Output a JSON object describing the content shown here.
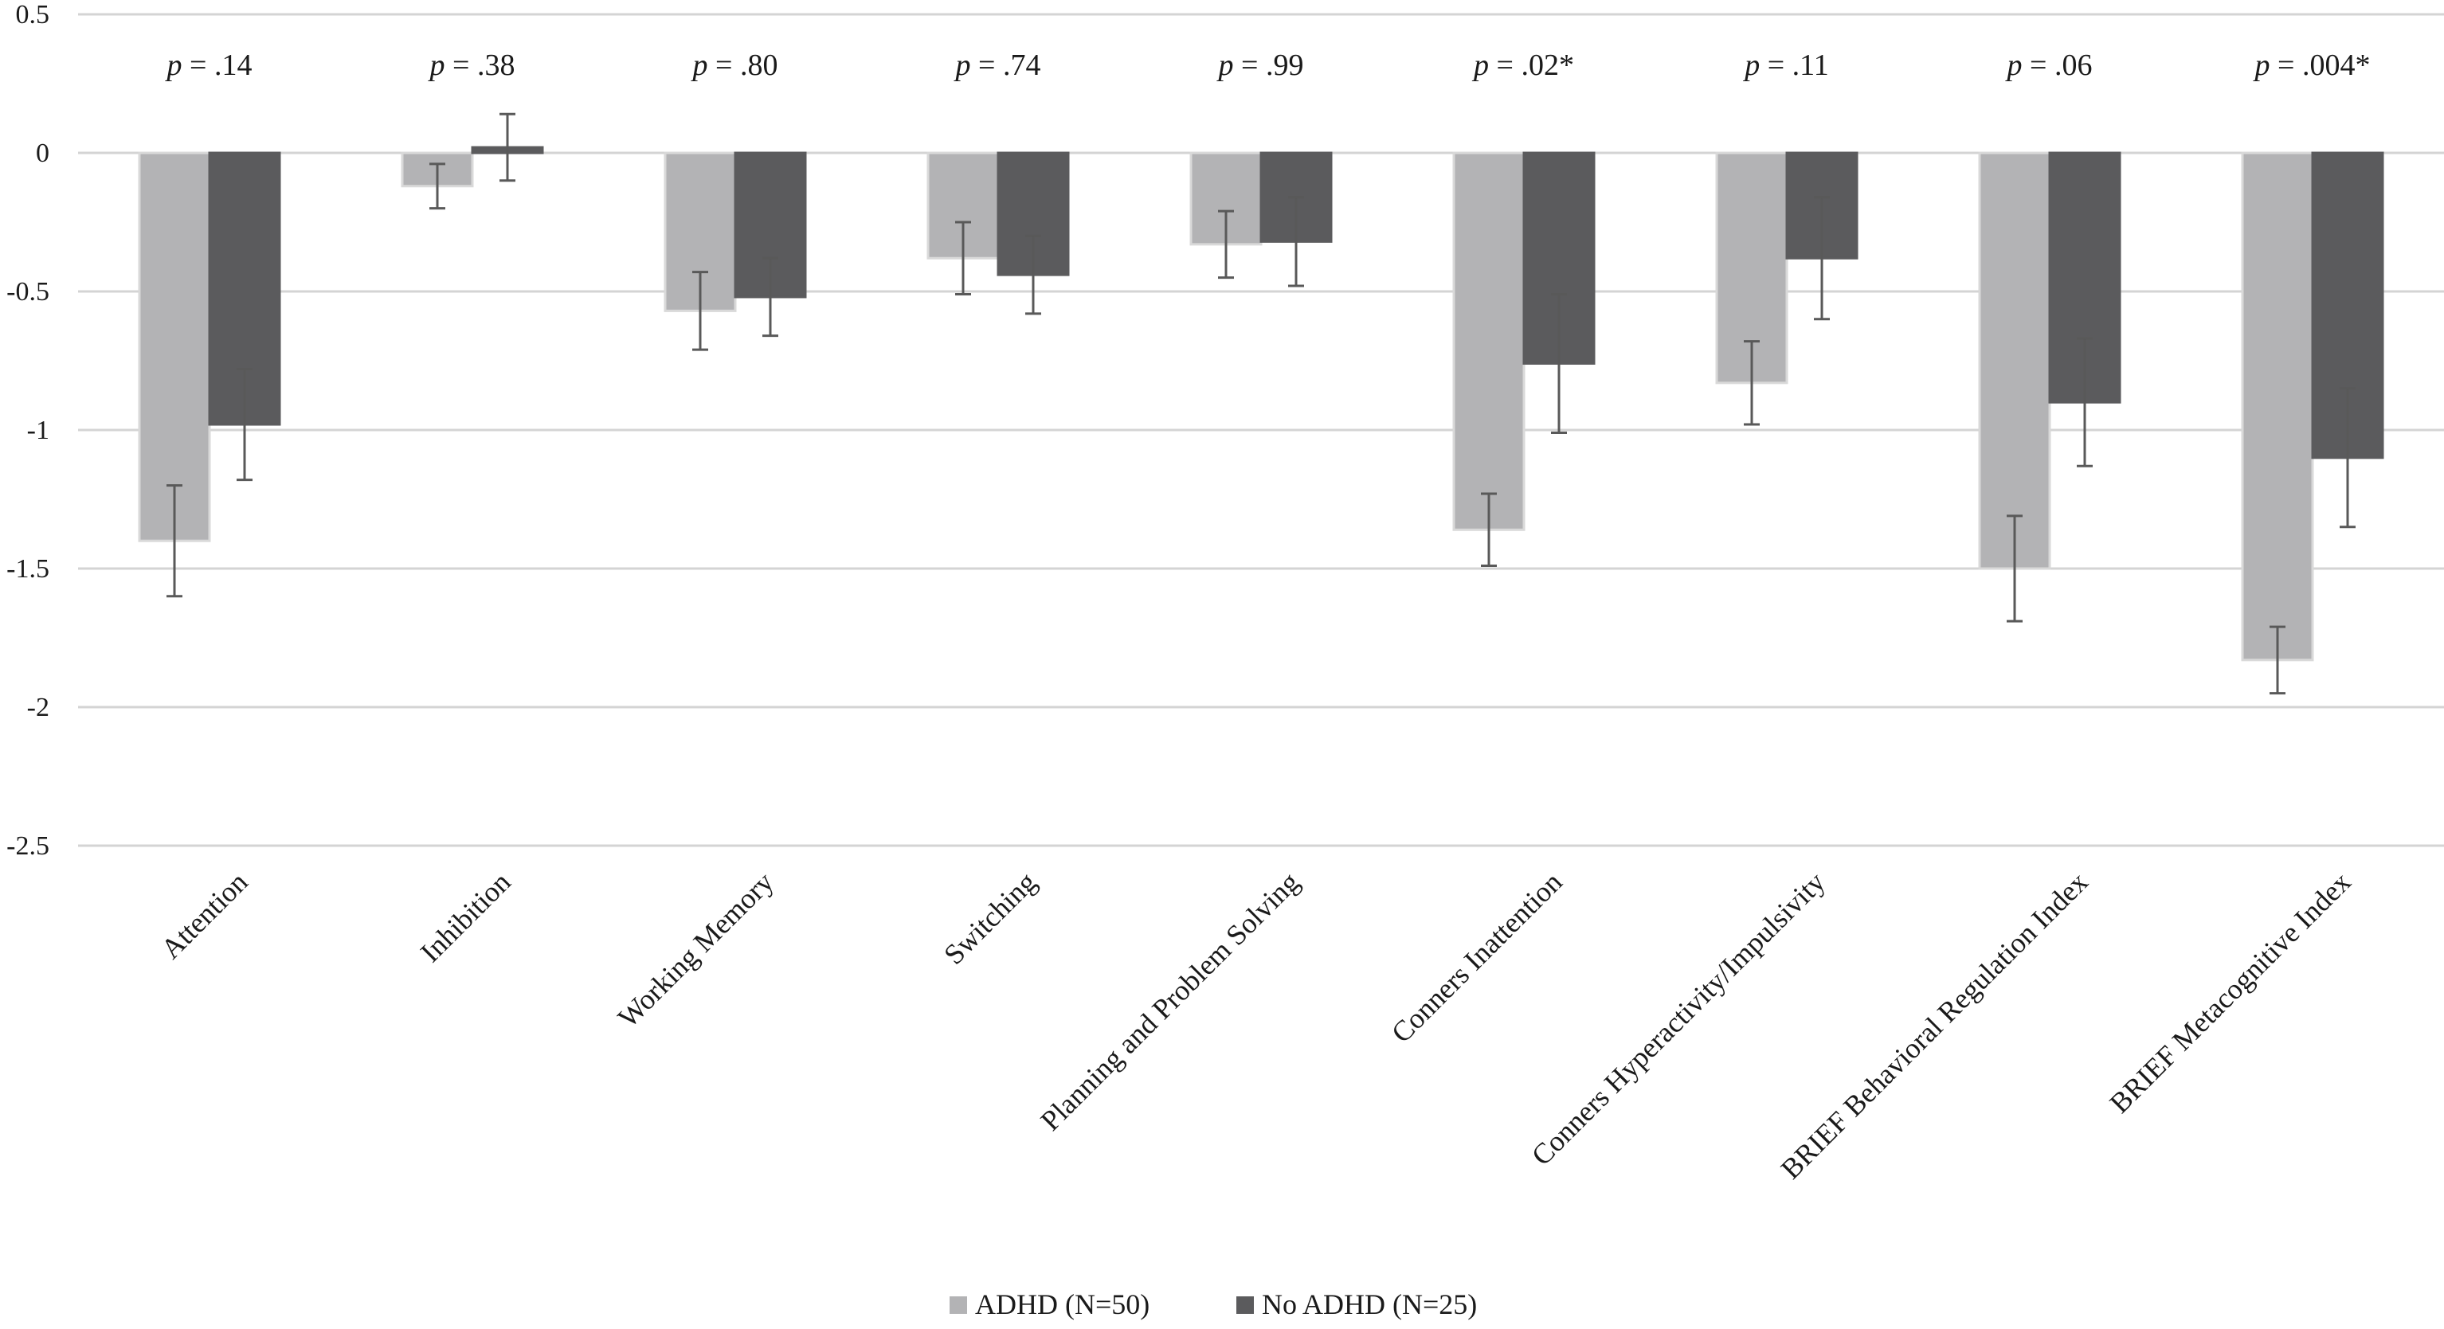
{
  "chart_data": {
    "type": "bar",
    "title": "",
    "xlabel": "",
    "ylabel": "",
    "ylim": [
      -2.5,
      0.5
    ],
    "yticks": [
      0.5,
      0,
      -0.5,
      -1,
      -1.5,
      -2,
      -2.5
    ],
    "ytick_labels": [
      "0.5",
      "0",
      "-0.5",
      "-1",
      "-1.5",
      "-2",
      "-2.5"
    ],
    "grid": true,
    "legend_position": "bottom-center",
    "categories": [
      "Attention",
      "Inhibition",
      "Working Memory",
      "Switching",
      "Planning and Problem Solving",
      "Conners Inattention",
      "Conners Hyperactivity/Impulsivity",
      "BRIEF Behavioral Regulation Index",
      "BRIEF Metacognitive Index"
    ],
    "p_values": [
      {
        "prefix": "p",
        "text": " = .14"
      },
      {
        "prefix": "p",
        "text": " = .38"
      },
      {
        "prefix": "p",
        "text": " = .80"
      },
      {
        "prefix": "p",
        "text": " = .74"
      },
      {
        "prefix": "p",
        "text": " = .99"
      },
      {
        "prefix": "p",
        "text": " = .02*"
      },
      {
        "prefix": "p",
        "text": " = .11"
      },
      {
        "prefix": "p",
        "text": " = .06"
      },
      {
        "prefix": "p",
        "text": " = .004*"
      }
    ],
    "series": [
      {
        "name": "ADHD (N=50)",
        "color": "#b3b3b5",
        "edge_color": "#d9d9d9",
        "values": [
          -1.4,
          -0.12,
          -0.57,
          -0.38,
          -0.33,
          -1.36,
          -0.83,
          -1.5,
          -1.83
        ],
        "error": [
          0.2,
          0.08,
          0.14,
          0.13,
          0.12,
          0.13,
          0.15,
          0.19,
          0.12
        ]
      },
      {
        "name": "No ADHD (N=25)",
        "color": "#5b5b5d",
        "edge_color": "#5b5b5d",
        "values": [
          -0.98,
          0.02,
          -0.52,
          -0.44,
          -0.32,
          -0.76,
          -0.38,
          -0.9,
          -1.1
        ],
        "error": [
          0.2,
          0.12,
          0.14,
          0.14,
          0.16,
          0.25,
          0.22,
          0.23,
          0.25
        ]
      }
    ]
  }
}
